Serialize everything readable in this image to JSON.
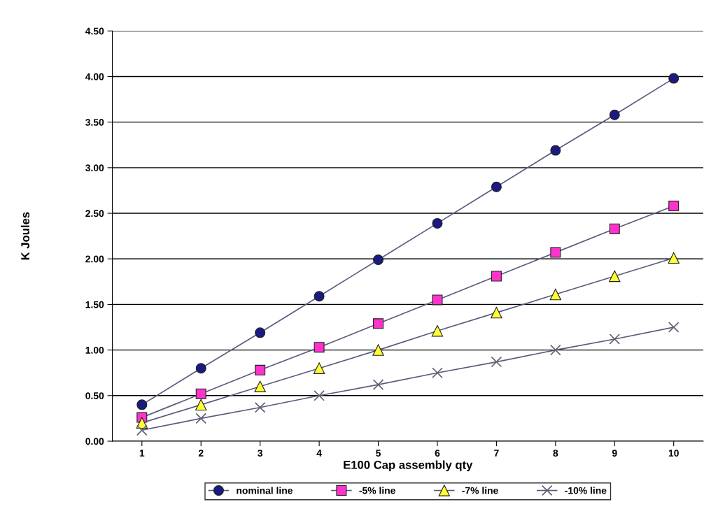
{
  "chart_data": {
    "type": "line",
    "xlabel": "E100 Cap assembly qty",
    "ylabel": "K Joules",
    "x": [
      1,
      2,
      3,
      4,
      5,
      6,
      7,
      8,
      9,
      10
    ],
    "xlim": [
      0.5,
      10.5
    ],
    "xticks": [
      1,
      2,
      3,
      4,
      5,
      6,
      7,
      8,
      9,
      10
    ],
    "ylim": [
      0,
      4.5
    ],
    "yticks": [
      {
        "value": 0,
        "label": "0.00"
      },
      {
        "value": 0.5,
        "label": "0.50"
      },
      {
        "value": 1,
        "label": "1.00"
      },
      {
        "value": 1.5,
        "label": "1.50"
      },
      {
        "value": 2,
        "label": "2.00"
      },
      {
        "value": 2.5,
        "label": "2.50"
      },
      {
        "value": 3,
        "label": "3.00"
      },
      {
        "value": 3.5,
        "label": "3.50"
      },
      {
        "value": 4,
        "label": "4.00"
      },
      {
        "value": 4.5,
        "label": "4.50"
      }
    ],
    "grid": "y",
    "legend": "bottom",
    "line_style": "solid",
    "series": [
      {
        "name": "nominal line",
        "color": "#1a1a80",
        "marker": "circle",
        "values": [
          0.4,
          0.8,
          1.19,
          1.59,
          1.99,
          2.39,
          2.79,
          3.19,
          3.58,
          3.98
        ]
      },
      {
        "name": "-5% line",
        "color": "#ff33cc",
        "marker": "square",
        "values": [
          0.26,
          0.52,
          0.78,
          1.03,
          1.29,
          1.55,
          1.81,
          2.07,
          2.33,
          2.58
        ]
      },
      {
        "name": "-7% line",
        "color": "#ffff33",
        "marker": "triangle",
        "values": [
          0.2,
          0.4,
          0.6,
          0.8,
          1.0,
          1.21,
          1.41,
          1.61,
          1.81,
          2.01
        ]
      },
      {
        "name": "-10% line",
        "color": "#606070",
        "marker": "cross",
        "values": [
          0.12,
          0.25,
          0.37,
          0.5,
          0.62,
          0.75,
          0.87,
          1.0,
          1.12,
          1.25
        ]
      }
    ]
  }
}
